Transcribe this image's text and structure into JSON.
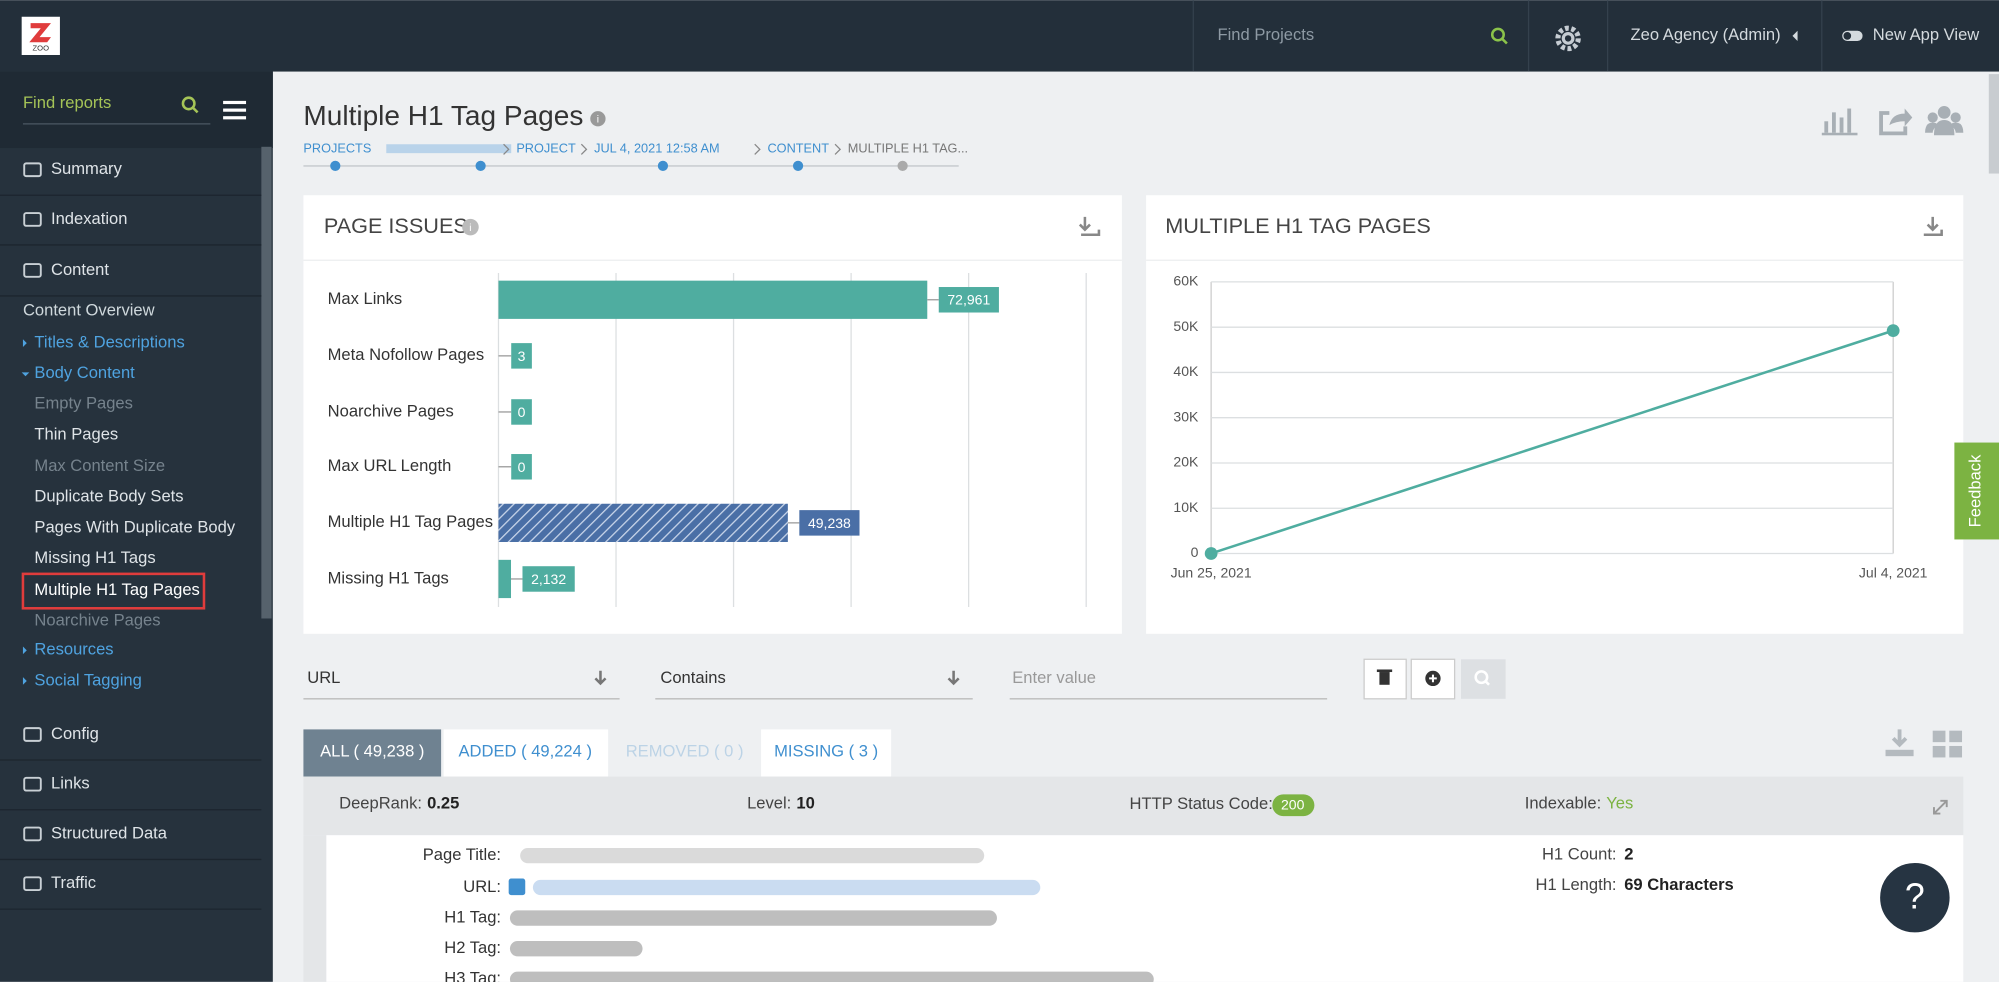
{
  "header": {
    "logo": "ZOO",
    "search_placeholder": "Find Projects",
    "account": "Zeo Agency (Admin)",
    "app_view": "New App View"
  },
  "sidebar": {
    "search_placeholder": "Find reports",
    "items": [
      "Summary",
      "Indexation",
      "Content",
      "Config",
      "Links",
      "Structured Data",
      "Traffic"
    ],
    "content_menu": [
      "Content Overview",
      "Titles & Descriptions",
      "Body Content",
      "Empty Pages",
      "Thin Pages",
      "Max Content Size",
      "Duplicate Body Sets",
      "Pages With Duplicate Body",
      "Missing H1 Tags",
      "Multiple H1 Tag Pages",
      "Noarchive Pages",
      "Resources",
      "Social Tagging"
    ]
  },
  "page": {
    "title": "Multiple H1 Tag Pages",
    "breadcrumbs": [
      "PROJECTS",
      "PROJECT",
      "JUL 4, 2021 12:58 AM",
      "CONTENT",
      "MULTIPLE H1 TAG..."
    ]
  },
  "chart_data": [
    {
      "type": "bar",
      "title": "PAGE ISSUES",
      "orientation": "horizontal",
      "categories": [
        "Max Links",
        "Meta Nofollow Pages",
        "Noarchive Pages",
        "Max URL Length",
        "Multiple H1 Tag Pages",
        "Missing H1 Tags"
      ],
      "values": [
        72961,
        3,
        0,
        0,
        49238,
        2132
      ],
      "value_labels": [
        "72,961",
        "3",
        "0",
        "0",
        "49,238",
        "2,132"
      ],
      "colors": [
        "#4fada0",
        "#4fada0",
        "#4fada0",
        "#4fada0",
        "#4a6fa6",
        "#4fada0"
      ],
      "xlim": [
        0,
        100000
      ],
      "xticks": [
        0,
        20000,
        40000,
        60000,
        80000,
        100000
      ],
      "grid": true
    },
    {
      "type": "line",
      "title": "MULTIPLE H1 TAG PAGES",
      "categories": [
        "Jun 25, 2021",
        "Jul 4, 2021"
      ],
      "values": [
        0,
        49238
      ],
      "color": "#4fada0",
      "ylim": [
        0,
        60000
      ],
      "yticks": [
        0,
        {
          "value": 10000,
          "label": "10K"
        },
        {
          "value": 20000,
          "label": "20K"
        },
        {
          "value": 30000,
          "label": "30K"
        },
        {
          "value": 40000,
          "label": "40K"
        },
        {
          "value": 50000,
          "label": "50K"
        },
        {
          "value": 60000,
          "label": "60K"
        }
      ],
      "grid": true
    }
  ],
  "filters": {
    "field": "URL",
    "operator": "Contains",
    "value_placeholder": "Enter value"
  },
  "tabs": [
    "ALL ( 49,238 )",
    "ADDED ( 49,224 )",
    "REMOVED ( 0 )",
    "MISSING ( 3 )"
  ],
  "detail": {
    "deeprank_label": "DeepRank:",
    "deeprank": "0.25",
    "level_label": "Level:",
    "level": "10",
    "status_label": "HTTP Status Code:",
    "status": "200",
    "indexable_label": "Indexable:",
    "indexable": "Yes",
    "fields": [
      "Page Title:",
      "URL:",
      "H1 Tag:",
      "H2 Tag:",
      "H3 Tag:"
    ],
    "h1_count_label": "H1 Count:",
    "h1_count": "2",
    "h1_length_label": "H1 Length:",
    "h1_length": "69 Characters"
  },
  "feedback": "Feedback",
  "help": "?"
}
